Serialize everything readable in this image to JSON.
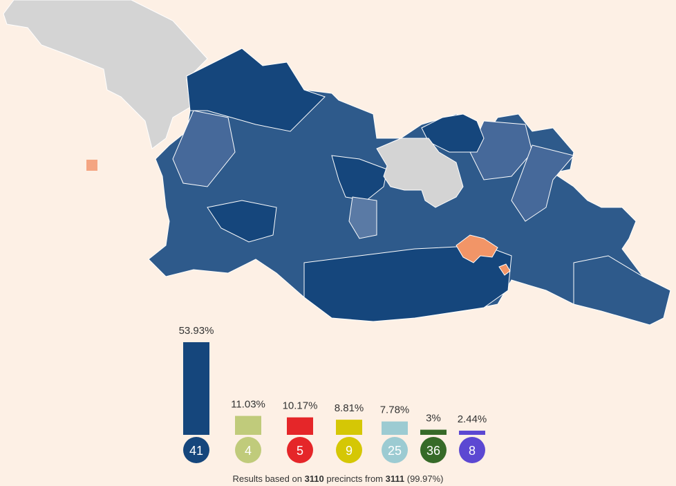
{
  "map": {
    "winner_color": "#15467c",
    "light_color": "#2e5a8b",
    "other_color": "#f29567",
    "no_data_color": "#d4d4d4",
    "legend_swatch_color": "#f4a582"
  },
  "chart_data": {
    "type": "bar",
    "categories": [
      "41",
      "4",
      "5",
      "9",
      "25",
      "36",
      "8"
    ],
    "values": [
      53.93,
      11.03,
      10.17,
      8.81,
      7.78,
      3,
      2.44
    ],
    "labels": [
      "53.93%",
      "11.03%",
      "10.17%",
      "8.81%",
      "7.78%",
      "3%",
      "2.44%"
    ],
    "colors": [
      "#15467c",
      "#c0cb7b",
      "#e52629",
      "#d5c705",
      "#9ccbd2",
      "#366a28",
      "#5c48d2"
    ],
    "ylim": [
      0,
      54
    ]
  },
  "footer": {
    "prefix": "Results based on ",
    "counted": "3110",
    "mid": " precincts from ",
    "total": "3111",
    "suffix": " (99.97%)"
  }
}
